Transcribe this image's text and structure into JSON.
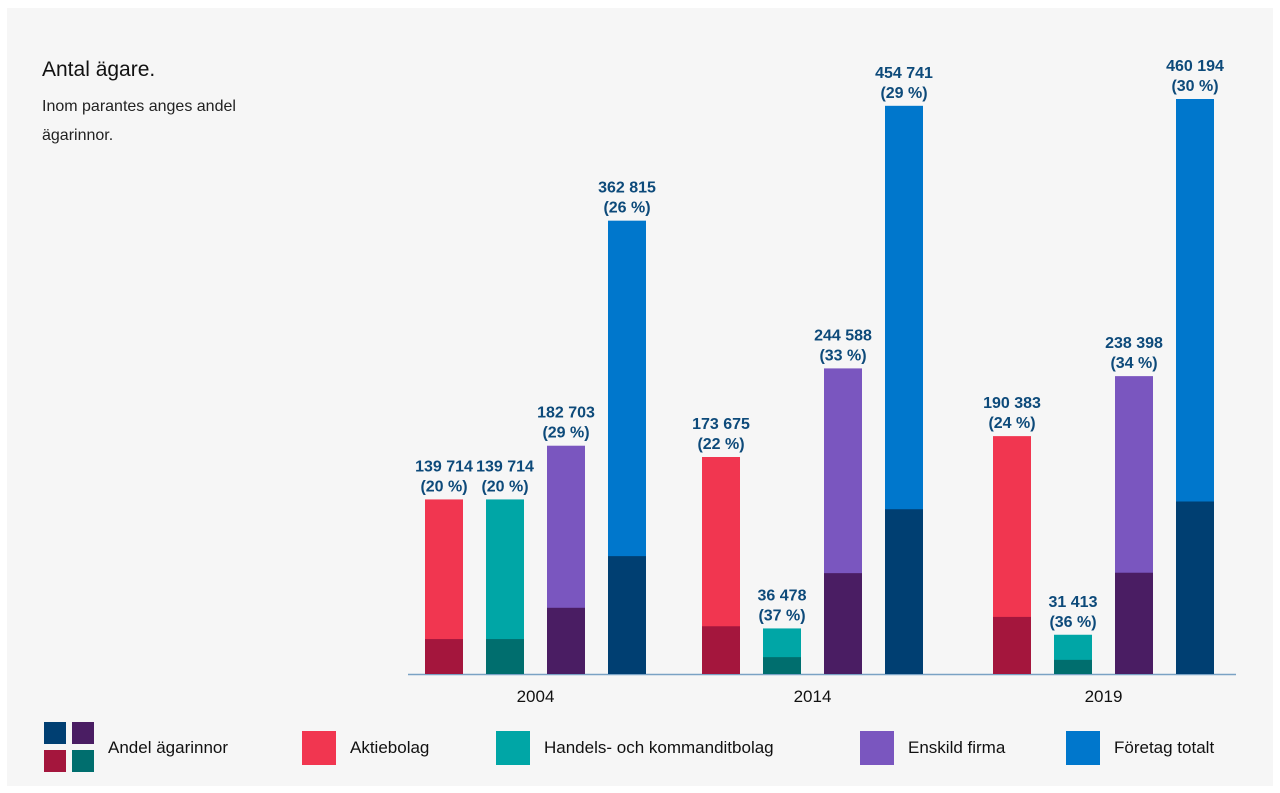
{
  "title": "Antal ägare.",
  "subtitle": "Inom parantes anges andel ägarinnor.",
  "colors": {
    "aktiebolag": "#f13650",
    "aktiebolag_dark": "#a4163d",
    "handels": "#00a6a6",
    "handels_dark": "#006e6e",
    "enskild": "#7a56bf",
    "enskild_dark": "#4a1d63",
    "totalt": "#0077cc",
    "totalt_dark": "#003f72",
    "label": "#0d4a7a"
  },
  "chart_data": {
    "type": "bar",
    "stacked_within_bar": true,
    "categories": [
      "2004",
      "2014",
      "2019"
    ],
    "series": [
      {
        "name": "Aktiebolag",
        "values": [
          139714,
          173675,
          190383
        ],
        "women_share_pct": [
          20,
          22,
          24
        ],
        "value_labels": [
          "139 714",
          "173 675",
          "190 383"
        ],
        "share_labels": [
          "(20 %)",
          "(22 %)",
          "(24 %)"
        ]
      },
      {
        "name": "Handels- och kommanditbolag",
        "values": [
          139714,
          36478,
          31413
        ],
        "women_share_pct": [
          20,
          37,
          36
        ],
        "value_labels": [
          "139 714",
          "36 478",
          "31 413"
        ],
        "share_labels": [
          "(20 %)",
          "(37 %)",
          "(36 %)"
        ]
      },
      {
        "name": "Enskild firma",
        "values": [
          182703,
          244588,
          238398
        ],
        "women_share_pct": [
          29,
          33,
          34
        ],
        "value_labels": [
          "182 703",
          "244 588",
          "238 398"
        ],
        "share_labels": [
          "(29 %)",
          "(33 %)",
          "(34 %)"
        ]
      },
      {
        "name": "Företag totalt",
        "values": [
          362815,
          454741,
          460194
        ],
        "women_share_pct": [
          26,
          29,
          30
        ],
        "value_labels": [
          "362 815",
          "454 741",
          "460 194"
        ],
        "share_labels": [
          "(26 %)",
          "(29 %)",
          "(30 %)"
        ]
      }
    ],
    "legend": [
      "Andel ägarinnor",
      "Aktiebolag",
      "Handels- och kommanditbolag",
      "Enskild firma",
      "Företag totalt"
    ],
    "legend_position": "bottom",
    "ylim": [
      0,
      460194
    ],
    "grid": false
  }
}
